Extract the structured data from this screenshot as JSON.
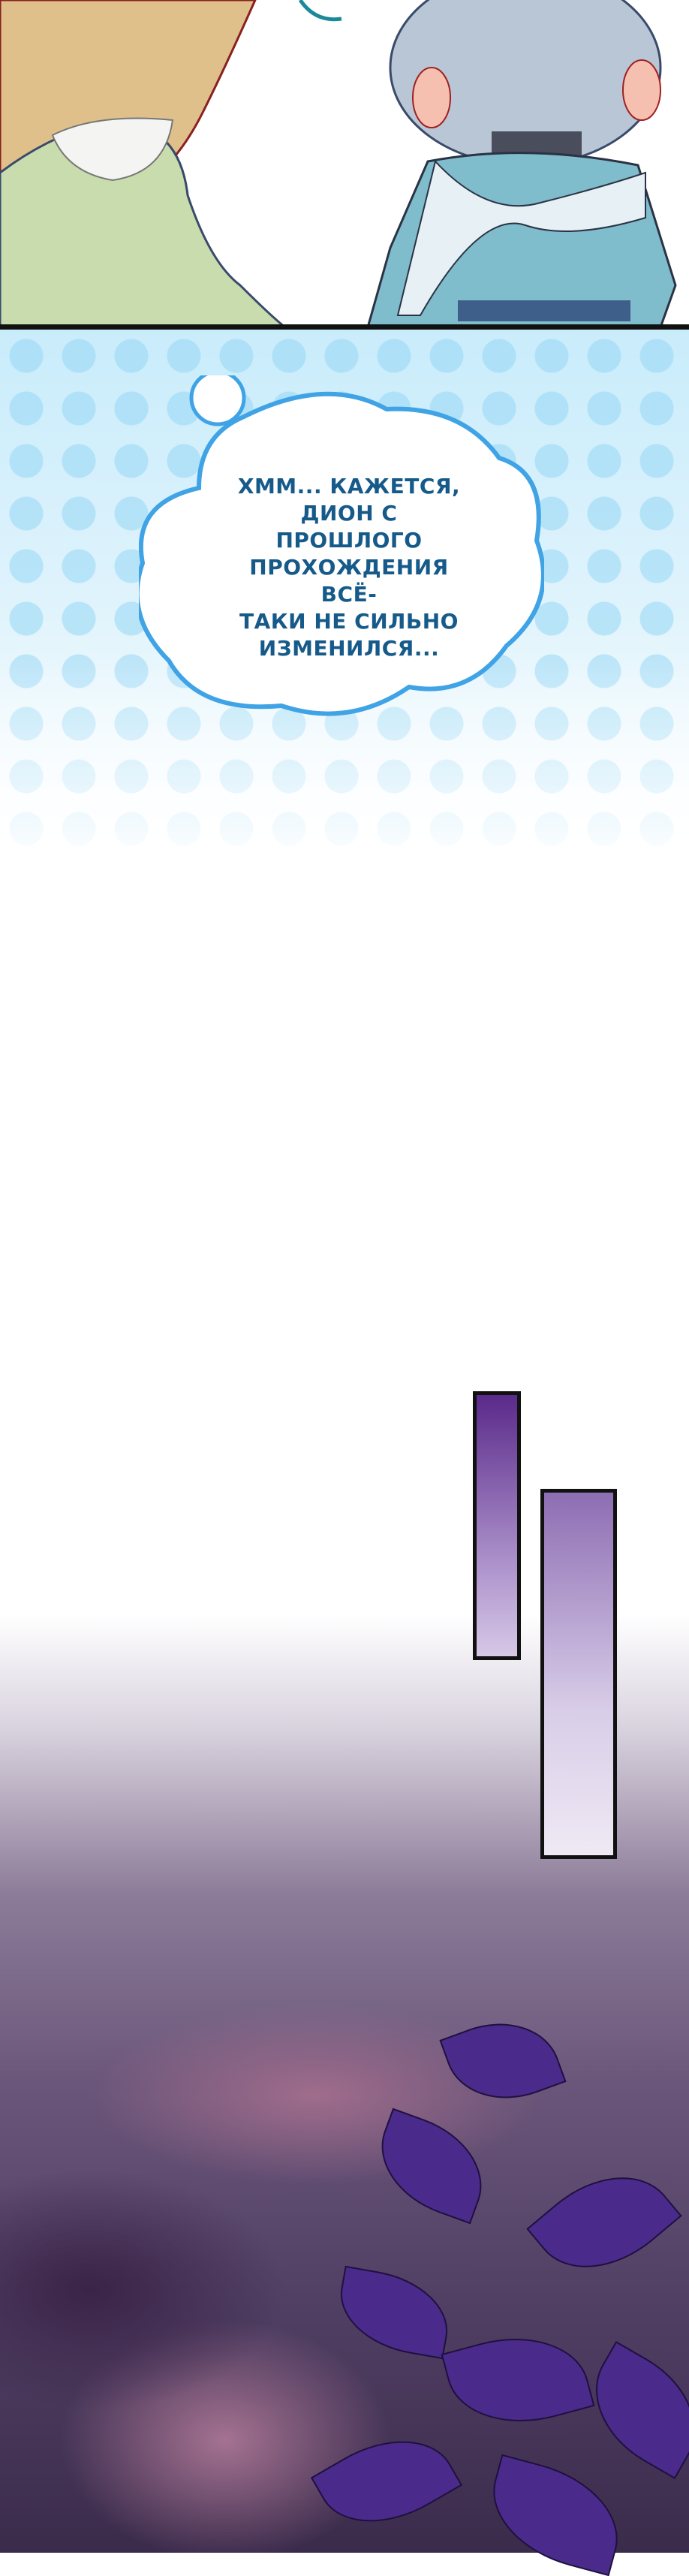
{
  "panels": [
    {
      "type": "illustration",
      "characters": [
        "blonde girl in green floral dress",
        "silver-haired boy in blue cape"
      ]
    },
    {
      "type": "thought-bubble",
      "text_lines": [
        "ХММ... КАЖЕТСЯ,",
        "ДИОН С ПРОШЛОГО",
        "ПРОХОЖДЕНИЯ ВСЁ-",
        "ТАКИ НЕ СИЛЬНО",
        "ИЗМЕНИЛСЯ..."
      ]
    },
    {
      "type": "night-sky",
      "description_colors": {
        "sky": "#6a567a",
        "leaves": "#4a2a8a"
      }
    }
  ],
  "colors": {
    "bubble_outline": "#3fa3e6",
    "bubble_text": "#165a8a",
    "background_dots": "#96d7f5",
    "box_purple": "#5a2a8a"
  }
}
